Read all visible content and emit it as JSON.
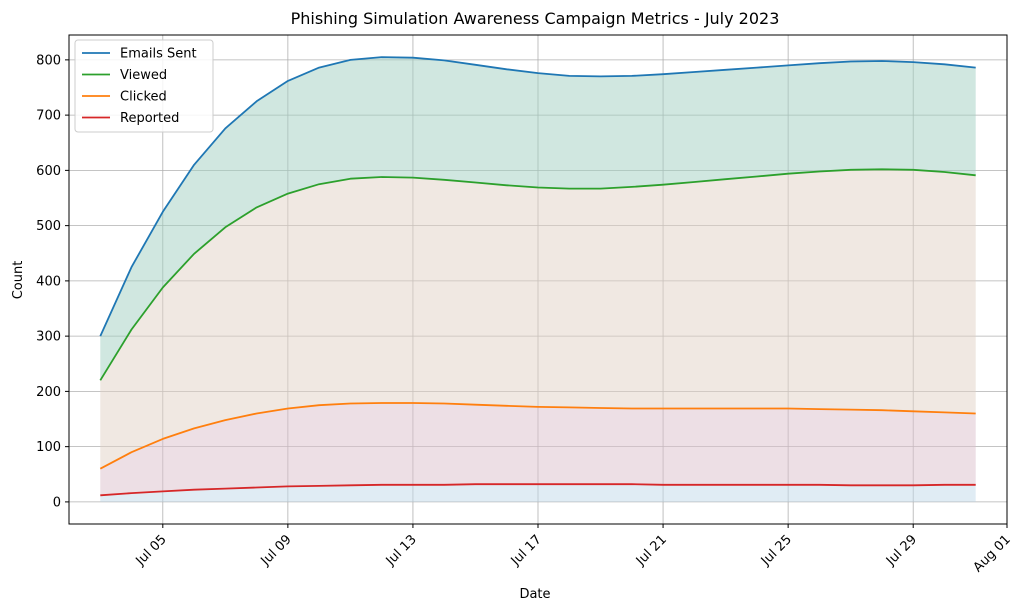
{
  "chart_data": {
    "type": "area",
    "title": "Phishing Simulation Awareness Campaign Metrics - July 2023",
    "xlabel": "Date",
    "ylabel": "Count",
    "x": [
      "2023-07-03",
      "2023-07-04",
      "2023-07-05",
      "2023-07-06",
      "2023-07-07",
      "2023-07-08",
      "2023-07-09",
      "2023-07-10",
      "2023-07-11",
      "2023-07-12",
      "2023-07-13",
      "2023-07-14",
      "2023-07-15",
      "2023-07-16",
      "2023-07-17",
      "2023-07-18",
      "2023-07-19",
      "2023-07-20",
      "2023-07-21",
      "2023-07-22",
      "2023-07-23",
      "2023-07-24",
      "2023-07-25",
      "2023-07-26",
      "2023-07-27",
      "2023-07-28",
      "2023-07-29",
      "2023-07-30",
      "2023-07-31"
    ],
    "xlim": [
      "2023-07-02",
      "2023-08-01"
    ],
    "xticks": [
      {
        "date": "2023-07-05",
        "label": "Jul 05"
      },
      {
        "date": "2023-07-09",
        "label": "Jul 09"
      },
      {
        "date": "2023-07-13",
        "label": "Jul 13"
      },
      {
        "date": "2023-07-17",
        "label": "Jul 17"
      },
      {
        "date": "2023-07-21",
        "label": "Jul 21"
      },
      {
        "date": "2023-07-25",
        "label": "Jul 25"
      },
      {
        "date": "2023-07-29",
        "label": "Jul 29"
      },
      {
        "date": "2023-08-01",
        "label": "Aug 01"
      }
    ],
    "ylim": [
      -40,
      845
    ],
    "yticks": [
      0,
      100,
      200,
      300,
      400,
      500,
      600,
      700,
      800
    ],
    "grid": true,
    "legend_position": "top-left",
    "series": [
      {
        "name": "Emails Sent",
        "color": "#1f77b4",
        "fill": "#a2cfc1",
        "values": [
          300,
          425,
          525,
          610,
          676,
          725,
          762,
          786,
          800,
          805,
          804,
          799,
          791,
          783,
          776,
          771,
          770,
          771,
          774,
          778,
          782,
          786,
          790,
          794,
          797,
          798,
          796,
          792,
          786
        ]
      },
      {
        "name": "Viewed",
        "color": "#2ca02c",
        "fill": "#e1d2c6",
        "values": [
          220,
          312,
          388,
          449,
          497,
          533,
          558,
          575,
          585,
          588,
          587,
          583,
          578,
          573,
          569,
          567,
          567,
          570,
          574,
          579,
          584,
          589,
          594,
          598,
          601,
          602,
          601,
          597,
          591
        ]
      },
      {
        "name": "Clicked",
        "color": "#ff7f0e",
        "fill": "#dcbfcc",
        "values": [
          60,
          90,
          114,
          133,
          148,
          160,
          169,
          175,
          178,
          179,
          179,
          178,
          176,
          174,
          172,
          171,
          170,
          169,
          169,
          169,
          169,
          169,
          169,
          168,
          167,
          166,
          164,
          162,
          160
        ]
      },
      {
        "name": "Reported",
        "color": "#d62728",
        "fill": "#c2d9ea",
        "values": [
          12,
          16,
          19,
          22,
          24,
          26,
          28,
          29,
          30,
          31,
          31,
          31,
          32,
          32,
          32,
          32,
          32,
          32,
          31,
          31,
          31,
          31,
          31,
          31,
          30,
          30,
          30,
          31,
          31
        ]
      }
    ]
  }
}
